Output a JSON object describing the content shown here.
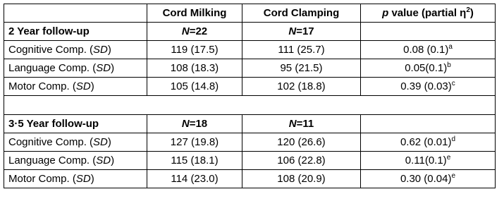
{
  "header": {
    "milking": "Cord Milking",
    "clamping": "Cord Clamping",
    "p": {
      "italic": "p",
      "text": " value (partial η",
      "sup": "2",
      "end": ")"
    }
  },
  "sections": [
    {
      "title": "2 Year follow-up",
      "n": [
        {
          "italic": "N",
          "text": "=22"
        },
        {
          "italic": "N",
          "text": "=17"
        }
      ],
      "rows": [
        {
          "label": {
            "text": "Cognitive Comp. (",
            "italic": "SD",
            "end": ")"
          },
          "milking": "119 (17.5)",
          "clamping": "111 (25.7)",
          "p": {
            "text": "0.08 (0.1)",
            "sup": "a"
          }
        },
        {
          "label": {
            "text": "Language Comp. (",
            "italic": "SD",
            "end": ")"
          },
          "milking": "108 (18.3)",
          "clamping": "95 (21.5)",
          "p": {
            "text": "0.05(0.1)",
            "sup": "b"
          }
        },
        {
          "label": {
            "text": "Motor Comp. (",
            "italic": "SD",
            "end": ")"
          },
          "milking": "105 (14.8)",
          "clamping": "102 (18.8)",
          "p": {
            "text": "0.39 (0.03)",
            "sup": "c"
          }
        }
      ]
    },
    {
      "title": "3·5 Year follow-up",
      "n": [
        {
          "italic": "N",
          "text": "=18"
        },
        {
          "italic": "N",
          "text": "=11"
        }
      ],
      "rows": [
        {
          "label": {
            "text": "Cognitive Comp. (",
            "italic": "SD",
            "end": ")"
          },
          "milking": "127 (19.8)",
          "clamping": "120 (26.6)",
          "p": {
            "text": "0.62 (0.01)",
            "sup": "d"
          }
        },
        {
          "label": {
            "text": "Language Comp. (",
            "italic": "SD",
            "end": ")"
          },
          "milking": "115 (18.1)",
          "clamping": "106 (22.8)",
          "p": {
            "text": "0.11(0.1)",
            "sup": "e"
          }
        },
        {
          "label": {
            "text": "Motor Comp. (",
            "italic": "SD",
            "end": ")"
          },
          "milking": "114 (23.0)",
          "clamping": "108 (20.9)",
          "p": {
            "text": "0.30 (0.04)",
            "sup": "e"
          }
        }
      ]
    }
  ]
}
